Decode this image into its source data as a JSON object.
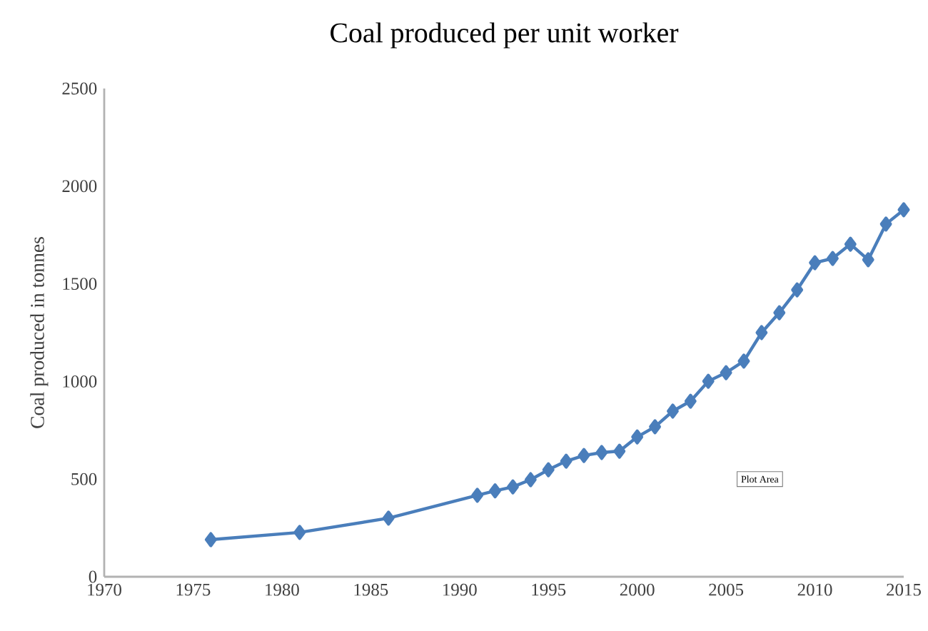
{
  "chart_data": {
    "type": "line",
    "title": "Coal produced per unit worker",
    "ylabel": "Coal produced in tonnes",
    "x": [
      1976,
      1981,
      1986,
      1991,
      1992,
      1993,
      1994,
      1995,
      1996,
      1997,
      1998,
      1999,
      2000,
      2001,
      2002,
      2003,
      2004,
      2005,
      2006,
      2007,
      2008,
      2009,
      2010,
      2011,
      2012,
      2013,
      2014,
      2015
    ],
    "series": [
      {
        "color": "#4a7ebb",
        "values": [
          190,
          227,
          300,
          417,
          440,
          460,
          497,
          548,
          592,
          621,
          636,
          643,
          716,
          768,
          848,
          899,
          1001,
          1045,
          1104,
          1250,
          1352,
          1469,
          1608,
          1630,
          1703,
          1623,
          1806,
          1879
        ]
      }
    ],
    "xlim": [
      1970,
      2015
    ],
    "xticks": [
      1970,
      1975,
      1980,
      1985,
      1990,
      1995,
      2000,
      2005,
      2010,
      2015
    ],
    "ylim": [
      0,
      2500
    ],
    "yticks": [
      0,
      500,
      1000,
      1500,
      2000,
      2500
    ],
    "marker": "diamond",
    "line_style": "solid",
    "grid": false,
    "annotations": [
      "Plot Area"
    ]
  }
}
